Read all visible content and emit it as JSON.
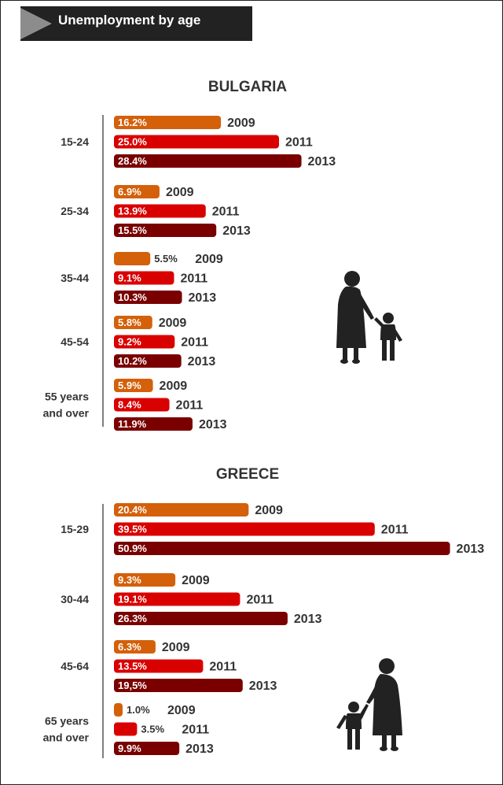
{
  "header": {
    "title": "Unemployment by age"
  },
  "colors": {
    "2009": "#d4600a",
    "2011": "#d90000",
    "2013": "#7a0000",
    "axis": "#555555",
    "text": "#333333"
  },
  "chart_data": [
    {
      "type": "bar",
      "title": "BULGARIA",
      "years": [
        "2009",
        "2011",
        "2013"
      ],
      "groups": [
        {
          "label": [
            "15-24"
          ],
          "values": [
            16.2,
            25.0,
            28.4
          ],
          "labels": [
            "16.2%",
            "25.0%",
            "28.4%"
          ]
        },
        {
          "label": [
            "25-34"
          ],
          "values": [
            6.9,
            13.9,
            15.5
          ],
          "labels": [
            "6.9%",
            "13.9%",
            "15.5%"
          ]
        },
        {
          "label": [
            "35-44"
          ],
          "values": [
            5.5,
            9.1,
            10.3
          ],
          "labels": [
            "5.5%",
            "9.1%",
            "10.3%"
          ]
        },
        {
          "label": [
            "45-54"
          ],
          "values": [
            5.8,
            9.2,
            10.2
          ],
          "labels": [
            "5.8%",
            "9.2%",
            "10.2%"
          ]
        },
        {
          "label": [
            "55 years",
            "and over"
          ],
          "values": [
            5.9,
            8.4,
            11.9
          ],
          "labels": [
            "5.9%",
            "8.4%",
            "11.9%"
          ]
        }
      ]
    },
    {
      "type": "bar",
      "title": "GREECE",
      "years": [
        "2009",
        "2011",
        "2013"
      ],
      "groups": [
        {
          "label": [
            "15-29"
          ],
          "values": [
            20.4,
            39.5,
            50.9
          ],
          "labels": [
            "20.4%",
            "39.5%",
            "50.9%"
          ]
        },
        {
          "label": [
            "30-44"
          ],
          "values": [
            9.3,
            19.1,
            26.3
          ],
          "labels": [
            "9.3%",
            "19.1%",
            "26.3%"
          ]
        },
        {
          "label": [
            "45-64"
          ],
          "values": [
            6.3,
            13.5,
            19.5
          ],
          "labels": [
            "6.3%",
            "13.5%",
            "19,5%"
          ]
        },
        {
          "label": [
            "65 years",
            "and over"
          ],
          "values": [
            1.0,
            3.5,
            9.9
          ],
          "labels": [
            "1.0%",
            "3.5%",
            "9.9%"
          ]
        }
      ]
    }
  ],
  "illustrations": [
    "elderly-woman-with-child-icon",
    "child-with-elderly-woman-icon"
  ]
}
